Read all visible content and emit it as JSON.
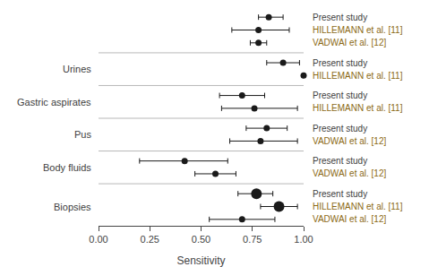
{
  "chart_data": {
    "type": "forest",
    "xlabel": "Sensitivity",
    "xlim": [
      0.0,
      1.0
    ],
    "xticks": [
      {
        "value": 0.0,
        "label": "0.00"
      },
      0.25,
      {
        "value": 0.5,
        "label": "0.50"
      },
      0.75,
      {
        "value": 1.0,
        "label": "1.00"
      }
    ],
    "grid": false,
    "groups": [
      {
        "label": null,
        "color": "#404040",
        "entries": [
          {
            "study": "Present study",
            "color": "#404040",
            "marker": "circle",
            "center": 0.83,
            "ci_low": 0.78,
            "ci_high": 0.9
          },
          {
            "study": "HILLEMANN et al. [11]",
            "color": "#8B6914",
            "marker": "circle",
            "center": 0.78,
            "ci_low": 0.65,
            "ci_high": 0.93
          },
          {
            "study": "VADWAI et al. [12]",
            "color": "#8B6914",
            "marker": "circle",
            "center": 0.78,
            "ci_low": 0.74,
            "ci_high": 0.82
          }
        ]
      },
      {
        "label": "Urines",
        "color": "#404040",
        "entries": [
          {
            "study": "Present study",
            "color": "#404040",
            "marker": "circle",
            "center": 0.9,
            "ci_low": 0.82,
            "ci_high": 0.98
          },
          {
            "study": "HILLEMANN et al. [11]",
            "color": "#8B6914",
            "marker": "circle",
            "center": 1.0,
            "ci_low": 1.0,
            "ci_high": 1.0
          }
        ]
      },
      {
        "label": "Gastric aspirates",
        "color": "#404040",
        "entries": [
          {
            "study": "Present study",
            "color": "#404040",
            "marker": "circle",
            "center": 0.7,
            "ci_low": 0.59,
            "ci_high": 0.81
          },
          {
            "study": "HILLEMANN et al. [11]",
            "color": "#8B6914",
            "marker": "circle",
            "center": 0.76,
            "ci_low": 0.6,
            "ci_high": 0.97
          }
        ]
      },
      {
        "label": "Pus",
        "color": "#404040",
        "entries": [
          {
            "study": "Present study",
            "color": "#404040",
            "marker": "circle",
            "center": 0.82,
            "ci_low": 0.72,
            "ci_high": 0.92
          },
          {
            "study": "VADWAI et al. [12]",
            "color": "#8B6914",
            "marker": "circle",
            "center": 0.79,
            "ci_low": 0.64,
            "ci_high": 0.97
          }
        ]
      },
      {
        "label": "Body fluids",
        "color": "#404040",
        "entries": [
          {
            "study": "Present study",
            "color": "#404040",
            "marker": "circle",
            "center": 0.42,
            "ci_low": 0.2,
            "ci_high": 0.63
          },
          {
            "study": "VADWAI et al. [12]",
            "color": "#8B6914",
            "marker": "circle",
            "center": 0.57,
            "ci_low": 0.47,
            "ci_high": 0.67
          }
        ]
      },
      {
        "label": "Biopsies",
        "color": "#404040",
        "entries": [
          {
            "study": "Present study",
            "color": "#404040",
            "marker": "large",
            "center": 0.77,
            "ci_low": 0.68,
            "ci_high": 0.85
          },
          {
            "study": "HILLEMANN et al. [11]",
            "color": "#8B6914",
            "marker": "large",
            "center": 0.88,
            "ci_low": 0.79,
            "ci_high": 0.97
          },
          {
            "study": "VADWAI et al. [12]",
            "color": "#8B6914",
            "marker": "circle",
            "center": 0.7,
            "ci_low": 0.54,
            "ci_high": 0.86
          }
        ]
      }
    ]
  }
}
